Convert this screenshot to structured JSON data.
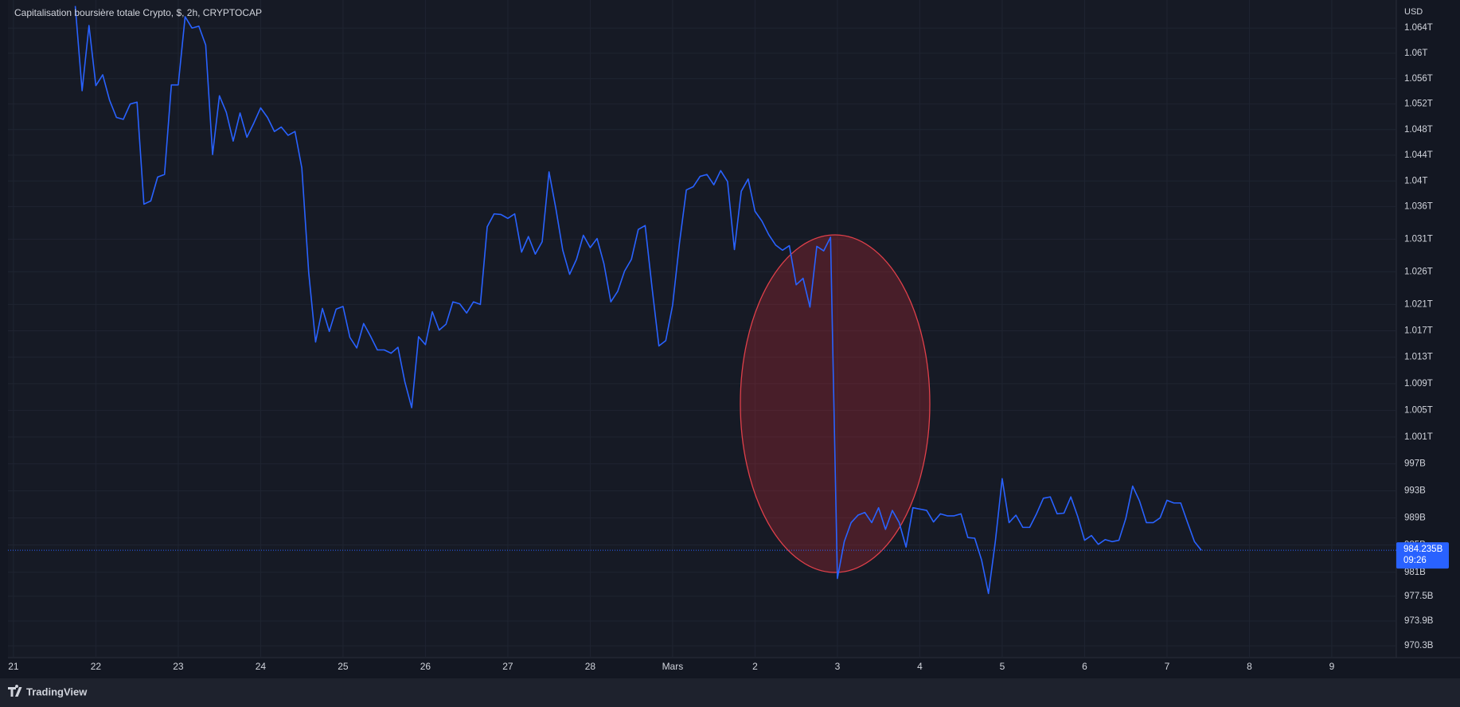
{
  "chart_data": {
    "type": "line",
    "title": "Capitalisation boursière totale Crypto, $, 2h, CRYPTOCAP",
    "y_unit": "USD",
    "log_scale": true,
    "grid": true,
    "color": "#2962ff",
    "x": [
      9,
      10,
      11,
      12,
      13,
      14,
      15,
      16,
      17,
      18,
      19,
      20,
      21,
      22,
      23,
      24,
      25,
      26,
      27,
      28,
      29,
      30,
      31,
      32,
      33,
      34,
      35,
      36,
      37,
      38,
      39,
      40,
      41,
      42,
      43,
      44,
      45,
      46,
      47,
      48,
      49,
      50,
      51,
      52,
      53,
      54,
      55,
      56,
      57,
      58,
      59,
      60,
      61,
      62,
      63,
      64,
      65,
      66,
      67,
      68,
      69,
      70,
      71,
      72,
      73,
      74,
      75,
      76,
      77,
      78,
      79,
      80,
      81,
      82,
      83,
      84,
      85,
      86,
      87,
      88,
      89,
      90,
      91,
      92,
      93,
      94,
      95,
      96,
      97,
      98,
      99,
      100,
      101,
      102,
      103,
      104,
      105,
      106,
      107,
      108,
      109,
      110,
      111,
      112,
      113,
      114,
      115,
      116,
      117,
      118,
      119,
      120,
      121,
      122,
      123,
      124,
      125,
      126,
      127,
      128,
      129,
      130,
      131,
      132,
      133,
      134,
      135,
      136,
      137,
      138,
      139,
      140,
      141,
      142,
      143,
      144,
      145,
      146,
      147,
      148,
      149,
      150,
      151,
      152,
      153,
      154,
      155,
      156,
      157,
      158,
      159,
      160,
      161,
      162,
      163,
      164,
      165,
      166,
      167,
      168,
      169,
      170,
      171,
      172,
      173
    ],
    "values": [
      1067.5,
      1054.1,
      1064.4,
      1054.9,
      1056.6,
      1052.6,
      1049.9,
      1049.6,
      1052,
      1052.3,
      1036.4,
      1036.9,
      1040.6,
      1041,
      1055,
      1055,
      1065.8,
      1064,
      1064.3,
      1061.3,
      1044.1,
      1053.3,
      1050.7,
      1046.2,
      1050.6,
      1046.8,
      1049,
      1051.4,
      1049.9,
      1047.7,
      1048.4,
      1047.1,
      1047.7,
      1042,
      1025.9,
      1015.3,
      1020.4,
      1016.9,
      1020.3,
      1020.7,
      1016,
      1014.4,
      1018.1,
      1016.2,
      1014.1,
      1014.1,
      1013.6,
      1014.5,
      1009.3,
      1005.4,
      1016.1,
      1014.9,
      1019.9,
      1017.1,
      1018,
      1021.4,
      1021.1,
      1019.7,
      1021.4,
      1021,
      1032.9,
      1034.9,
      1034.8,
      1034.2,
      1034.9,
      1029,
      1031.4,
      1028.7,
      1030.6,
      1041.4,
      1035.7,
      1029.3,
      1025.6,
      1027.9,
      1031.6,
      1029.7,
      1031.1,
      1027.2,
      1021.4,
      1023,
      1026.1,
      1027.9,
      1032.5,
      1033.1,
      1023.6,
      1014.7,
      1015.5,
      1020.9,
      1030.4,
      1038.6,
      1039.1,
      1040.7,
      1041,
      1039.4,
      1041.6,
      1039.9,
      1029.4,
      1038.4,
      1040.3,
      1035.3,
      1033.8,
      1031.7,
      1030.1,
      1029.3,
      1030,
      1024,
      1025,
      1020.6,
      1029.9,
      1029.2,
      1031.3,
      980.1,
      985.5,
      988.3,
      989.4,
      989.8,
      988.3,
      990.5,
      987.3,
      990.1,
      988.3,
      984.7,
      990.5,
      990.3,
      990.1,
      988.4,
      989.6,
      989.3,
      989.3,
      989.6,
      986.1,
      986,
      982.8,
      977.9,
      985.5,
      994.8,
      988.3,
      989.4,
      987.6,
      987.6,
      989.6,
      991.9,
      992.1,
      989.6,
      989.7,
      992.1,
      989.2,
      985.7,
      986.4,
      985.1,
      985.8,
      985.5,
      985.7,
      988.9,
      993.7,
      991.5,
      988.3,
      988.3,
      989,
      991.6,
      991.2,
      991.2,
      988.3,
      985.5,
      984.235
    ],
    "xlim": [
      -0.8,
      201.4
    ],
    "xticks": [
      {
        "value": 0,
        "label": "21"
      },
      {
        "value": 12,
        "label": "22"
      },
      {
        "value": 24,
        "label": "23"
      },
      {
        "value": 36,
        "label": "24"
      },
      {
        "value": 48,
        "label": "25"
      },
      {
        "value": 60,
        "label": "26"
      },
      {
        "value": 72,
        "label": "27"
      },
      {
        "value": 84,
        "label": "28"
      },
      {
        "value": 96,
        "label": "Mars"
      },
      {
        "value": 108,
        "label": "2"
      },
      {
        "value": 120,
        "label": "3"
      },
      {
        "value": 132,
        "label": "4"
      },
      {
        "value": 144,
        "label": "5"
      },
      {
        "value": 156,
        "label": "6"
      },
      {
        "value": 168,
        "label": "7"
      },
      {
        "value": 180,
        "label": "8"
      },
      {
        "value": 192,
        "label": "9"
      }
    ],
    "ylim": [
      968.7,
      1067.7
    ],
    "yticks": [
      {
        "value": 1064,
        "label": "1.064T"
      },
      {
        "value": 1060,
        "label": "1.06T"
      },
      {
        "value": 1056,
        "label": "1.056T"
      },
      {
        "value": 1052,
        "label": "1.052T"
      },
      {
        "value": 1048,
        "label": "1.048T"
      },
      {
        "value": 1044,
        "label": "1.044T"
      },
      {
        "value": 1040,
        "label": "1.04T"
      },
      {
        "value": 1036,
        "label": "1.036T"
      },
      {
        "value": 1031,
        "label": "1.031T"
      },
      {
        "value": 1026,
        "label": "1.026T"
      },
      {
        "value": 1021,
        "label": "1.021T"
      },
      {
        "value": 1017,
        "label": "1.017T"
      },
      {
        "value": 1013,
        "label": "1.013T"
      },
      {
        "value": 1009,
        "label": "1.009T"
      },
      {
        "value": 1005,
        "label": "1.005T"
      },
      {
        "value": 1001,
        "label": "1.001T"
      },
      {
        "value": 997,
        "label": "997B"
      },
      {
        "value": 993,
        "label": "993B"
      },
      {
        "value": 989,
        "label": "989B"
      },
      {
        "value": 985,
        "label": "985B"
      },
      {
        "value": 981,
        "label": "981B"
      },
      {
        "value": 977.5,
        "label": "977.5B"
      },
      {
        "value": 973.9,
        "label": "973.9B"
      },
      {
        "value": 970.3,
        "label": "970.3B"
      }
    ],
    "last_price": {
      "value": 984.235,
      "label": "984.235B"
    },
    "countdown": "09:26",
    "brand": "TradingView"
  }
}
